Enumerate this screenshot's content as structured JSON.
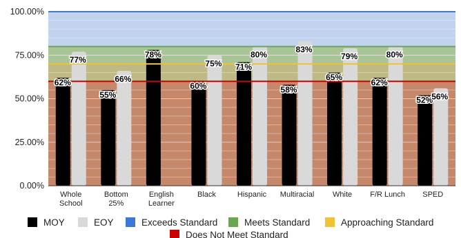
{
  "chart_data": {
    "type": "bar",
    "title": "",
    "xlabel": "",
    "ylabel": "",
    "ylim": [
      0,
      100
    ],
    "yticks": [
      "0.00%",
      "25.00%",
      "50.00%",
      "75.00%",
      "100.00%"
    ],
    "ytick_values": [
      0,
      25,
      50,
      75,
      100
    ],
    "categories": [
      "Whole School",
      "Bottom 25%",
      "English Learner",
      "Black",
      "Hispanic",
      "Multiracial",
      "White",
      "F/R Lunch",
      "SPED"
    ],
    "category_lines": [
      [
        "Whole",
        "School"
      ],
      [
        "Bottom",
        "25%"
      ],
      [
        "English",
        "Learner"
      ],
      [
        "Black"
      ],
      [
        "Hispanic"
      ],
      [
        "Multiracial"
      ],
      [
        "White"
      ],
      [
        "F/R Lunch"
      ],
      [
        "SPED"
      ]
    ],
    "series": [
      {
        "name": "MOY",
        "color": "#000000",
        "values": [
          62,
          55,
          78,
          60,
          71,
          58,
          65,
          62,
          52
        ],
        "labels": [
          "62%",
          "55%",
          "78%",
          "60%",
          "71%",
          "58%",
          "65%",
          "62%",
          "52%"
        ]
      },
      {
        "name": "EOY",
        "color": "#d9d9d9",
        "values": [
          77,
          66,
          null,
          75,
          80,
          83,
          79,
          80,
          56
        ],
        "labels": [
          "77%",
          "66%",
          "",
          "75%",
          "80%",
          "83%",
          "79%",
          "80%",
          "56%"
        ]
      }
    ],
    "bands": [
      {
        "name": "Does Not Meet Standard",
        "from": 0,
        "to": 60,
        "fill": "#c5886a",
        "line": 60,
        "color": "#cc0000"
      },
      {
        "name": "Approaching Standard",
        "from": 60,
        "to": 70,
        "fill": "#bfb985",
        "line": 70,
        "color": "#f1c232"
      },
      {
        "name": "Meets Standard",
        "from": 70,
        "to": 80,
        "fill": "#a9c597",
        "line": 80,
        "color": "#6aa84f"
      },
      {
        "name": "Exceeds Standard",
        "from": 80,
        "to": 100,
        "fill": "#c1d3ef",
        "line": 100,
        "color": "#3c78d8"
      }
    ],
    "legend": [
      {
        "name": "MOY",
        "color": "#000000"
      },
      {
        "name": "EOY",
        "color": "#d9d9d9"
      },
      {
        "name": "Exceeds Standard",
        "color": "#3c78d8"
      },
      {
        "name": "Meets Standard",
        "color": "#6aa84f"
      },
      {
        "name": "Approaching Standard",
        "color": "#f1c232"
      },
      {
        "name": "Does Not Meet Standard",
        "color": "#cc0000"
      }
    ],
    "legend_position": "bottom",
    "grid": true
  }
}
